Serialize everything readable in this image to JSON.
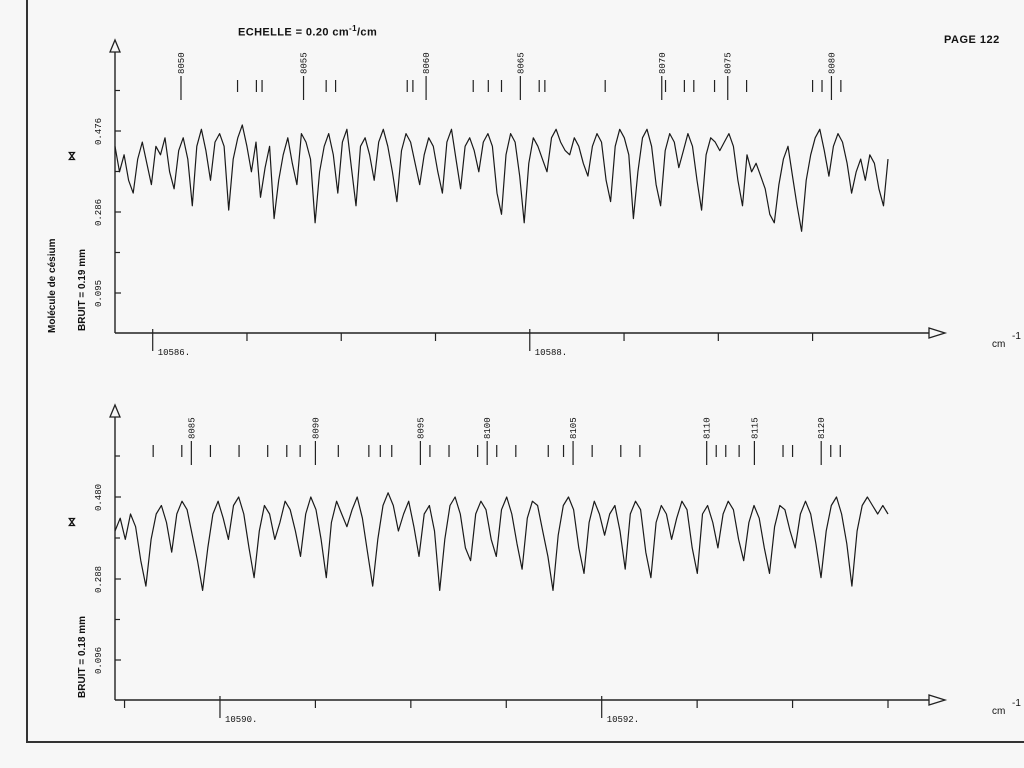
{
  "page": {
    "label": "PAGE 122"
  },
  "scale": {
    "prefix": "ECHELLE = 0.20 cm",
    "exp": "-1",
    "suffix": "/cm"
  },
  "chart_data": [
    {
      "type": "line",
      "title": "",
      "xlabel": "cm-1",
      "x_unit": "cm",
      "x_unit_exp": "-1",
      "molecule_label": "Molécule de césium",
      "noise_label": "BRUIT = 0.19 mm",
      "mark_symbol": "⋈",
      "y_ticks": [
        "0.095",
        "0.286",
        "0.476"
      ],
      "x_ticks": [
        {
          "label": "10586.",
          "value": 10586
        },
        {
          "label": "10588.",
          "value": 10588
        }
      ],
      "xlim": [
        10585.8,
        10589.9
      ],
      "line_labels": [
        "8050",
        "8055",
        "8060",
        "8065",
        "8070",
        "8075",
        "8080"
      ],
      "line_label_positions": [
        10586.15,
        10586.8,
        10587.45,
        10587.95,
        10588.7,
        10589.05,
        10589.6
      ],
      "line_marker_positions": [
        10586.45,
        10586.55,
        10586.58,
        10586.92,
        10586.97,
        10587.35,
        10587.38,
        10587.7,
        10587.78,
        10587.85,
        10588.05,
        10588.08,
        10588.4,
        10588.72,
        10588.82,
        10588.87,
        10588.98,
        10589.15,
        10589.5,
        10589.55,
        10589.65
      ],
      "series": [
        {
          "values": [
            0.44,
            0.38,
            0.42,
            0.36,
            0.33,
            0.41,
            0.45,
            0.4,
            0.35,
            0.44,
            0.42,
            0.46,
            0.38,
            0.34,
            0.43,
            0.46,
            0.41,
            0.3,
            0.44,
            0.48,
            0.43,
            0.36,
            0.45,
            0.47,
            0.44,
            0.29,
            0.41,
            0.46,
            0.49,
            0.44,
            0.38,
            0.45,
            0.32,
            0.39,
            0.44,
            0.27,
            0.36,
            0.42,
            0.46,
            0.4,
            0.35,
            0.47,
            0.45,
            0.41,
            0.26,
            0.38,
            0.44,
            0.47,
            0.42,
            0.33,
            0.45,
            0.48,
            0.39,
            0.3,
            0.44,
            0.46,
            0.42,
            0.36,
            0.45,
            0.48,
            0.44,
            0.38,
            0.31,
            0.43,
            0.47,
            0.45,
            0.4,
            0.35,
            0.42,
            0.46,
            0.44,
            0.38,
            0.33,
            0.45,
            0.48,
            0.41,
            0.34,
            0.44,
            0.46,
            0.43,
            0.38,
            0.45,
            0.47,
            0.44,
            0.33,
            0.28,
            0.42,
            0.47,
            0.45,
            0.37,
            0.26,
            0.4,
            0.46,
            0.44,
            0.41,
            0.38,
            0.46,
            0.48,
            0.45,
            0.43,
            0.42,
            0.46,
            0.44,
            0.4,
            0.37,
            0.44,
            0.47,
            0.45,
            0.36,
            0.31,
            0.44,
            0.48,
            0.46,
            0.42,
            0.27,
            0.38,
            0.46,
            0.48,
            0.44,
            0.35,
            0.3,
            0.43,
            0.47,
            0.45,
            0.39,
            0.43,
            0.47,
            0.44,
            0.36,
            0.29,
            0.42,
            0.46,
            0.45,
            0.43,
            0.45,
            0.47,
            0.44,
            0.36,
            0.3,
            0.42,
            0.38,
            0.4,
            0.37,
            0.34,
            0.28,
            0.26,
            0.35,
            0.41,
            0.44,
            0.37,
            0.3,
            0.24,
            0.36,
            0.42,
            0.46,
            0.48,
            0.43,
            0.37,
            0.44,
            0.47,
            0.45,
            0.4,
            0.33,
            0.38,
            0.41,
            0.36,
            0.42,
            0.4,
            0.34,
            0.3,
            0.41
          ]
        }
      ]
    },
    {
      "type": "line",
      "title": "",
      "xlabel": "cm-1",
      "x_unit": "cm",
      "x_unit_exp": "-1",
      "noise_label": "BRUIT = 0.18 mm",
      "mark_symbol": "⋈",
      "y_ticks": [
        "0.096",
        "0.288",
        "0.480"
      ],
      "x_ticks": [
        {
          "label": "10590.",
          "value": 10590
        },
        {
          "label": "10592.",
          "value": 10592
        }
      ],
      "xlim": [
        10589.45,
        10593.5
      ],
      "line_labels": [
        "8085",
        "8090",
        "8095",
        "8100",
        "8105",
        "8110",
        "8115",
        "8120"
      ],
      "line_label_positions": [
        10589.85,
        10590.5,
        10591.05,
        10591.4,
        10591.85,
        10592.55,
        10592.8,
        10593.15
      ],
      "line_marker_positions": [
        10589.65,
        10589.8,
        10589.95,
        10590.1,
        10590.25,
        10590.35,
        10590.42,
        10590.62,
        10590.78,
        10590.84,
        10590.9,
        10591.1,
        10591.2,
        10591.35,
        10591.45,
        10591.55,
        10591.72,
        10591.8,
        10591.95,
        10592.1,
        10592.2,
        10592.6,
        10592.65,
        10592.72,
        10592.95,
        10593.0,
        10593.2,
        10593.25
      ],
      "series": [
        {
          "values": [
            0.4,
            0.43,
            0.38,
            0.44,
            0.41,
            0.33,
            0.27,
            0.38,
            0.44,
            0.46,
            0.42,
            0.35,
            0.44,
            0.47,
            0.45,
            0.39,
            0.33,
            0.26,
            0.36,
            0.44,
            0.47,
            0.43,
            0.38,
            0.46,
            0.48,
            0.44,
            0.36,
            0.29,
            0.4,
            0.46,
            0.44,
            0.38,
            0.42,
            0.47,
            0.45,
            0.4,
            0.34,
            0.44,
            0.48,
            0.45,
            0.38,
            0.29,
            0.42,
            0.47,
            0.44,
            0.41,
            0.45,
            0.48,
            0.43,
            0.35,
            0.27,
            0.38,
            0.46,
            0.49,
            0.46,
            0.4,
            0.44,
            0.47,
            0.41,
            0.34,
            0.44,
            0.46,
            0.4,
            0.26,
            0.38,
            0.46,
            0.48,
            0.44,
            0.36,
            0.33,
            0.44,
            0.47,
            0.45,
            0.38,
            0.34,
            0.45,
            0.48,
            0.44,
            0.37,
            0.31,
            0.43,
            0.47,
            0.46,
            0.4,
            0.34,
            0.26,
            0.39,
            0.46,
            0.48,
            0.45,
            0.36,
            0.3,
            0.42,
            0.47,
            0.44,
            0.39,
            0.44,
            0.46,
            0.4,
            0.31,
            0.44,
            0.47,
            0.45,
            0.35,
            0.29,
            0.42,
            0.46,
            0.44,
            0.38,
            0.43,
            0.47,
            0.45,
            0.36,
            0.3,
            0.44,
            0.46,
            0.42,
            0.36,
            0.44,
            0.47,
            0.45,
            0.38,
            0.33,
            0.42,
            0.46,
            0.43,
            0.36,
            0.3,
            0.41,
            0.46,
            0.45,
            0.4,
            0.36,
            0.44,
            0.47,
            0.44,
            0.37,
            0.29,
            0.4,
            0.46,
            0.48,
            0.44,
            0.37,
            0.27,
            0.4,
            0.46,
            0.48,
            0.46,
            0.44,
            0.46,
            0.44
          ]
        }
      ]
    }
  ]
}
